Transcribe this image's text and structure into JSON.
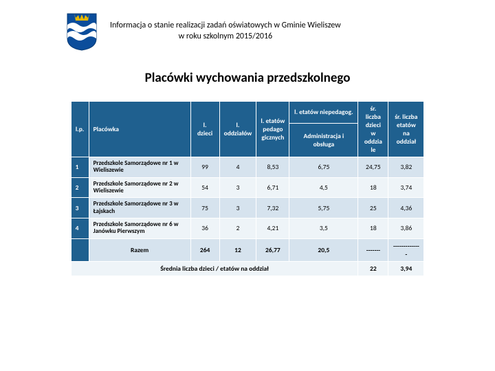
{
  "header": {
    "line1": "Informacja o stanie realizacji zadań oświatowych w Gminie Wieliszew",
    "line2": "w roku szkolnym 2015/2016"
  },
  "title": "Placówki wychowania przedszkolnego",
  "crest": {
    "shield_color": "#0b4d9b",
    "wave_color": "#ffffff",
    "crown_color": "#e6b800"
  },
  "table": {
    "headers": {
      "lp": "l.p.",
      "placowka": "Placówka",
      "ldzieci": "l. dzieci",
      "loddz": "l. oddziałów",
      "letatow_ped": "l. etatów pedago gicznych",
      "letatow_nieped": "l. etatów niepedagog.",
      "admin": "Administracja i obsługa",
      "sr_dzieci": "śr. liczba dzieci w oddzia le",
      "sr_etatow": "śr. liczba etatów na oddział"
    },
    "rows": [
      {
        "lp": "1",
        "plac": "Przedszkole Samorządowe nr 1 w Wieliszewie",
        "dz": "99",
        "odd": "4",
        "ep": "8,53",
        "admin": "6,75",
        "srd": "24,75",
        "sre": "3,82"
      },
      {
        "lp": "2",
        "plac": "Przedszkole Samorządowe nr 2 w Wieliszewie",
        "dz": "54",
        "odd": "3",
        "ep": "6,71",
        "admin": "4,5",
        "srd": "18",
        "sre": "3,74"
      },
      {
        "lp": "3",
        "plac": "Przedszkole Samorządowe nr 3 w Łajskach",
        "dz": "75",
        "odd": "3",
        "ep": "7,32",
        "admin": "5,75",
        "srd": "25",
        "sre": "4,36"
      },
      {
        "lp": "4",
        "plac": "Przedszkole Samorządowe nr 6 w Janówku Pierwszym",
        "dz": "36",
        "odd": "2",
        "ep": "4,21",
        "admin": "3,5",
        "srd": "18",
        "sre": "3,86"
      }
    ],
    "razem": {
      "label": "Razem",
      "dz": "264",
      "odd": "12",
      "ep": "26,77",
      "admin": "20,5",
      "srd": "-------",
      "sre": "--------------"
    },
    "footer": {
      "label": "Średnia liczba dzieci / etatów na oddział",
      "srd": "22",
      "sre": "3,94"
    }
  },
  "colors": {
    "header_bg": "#1f608f",
    "row_odd": "#d6e3ee",
    "row_even": "#eef4f8"
  }
}
